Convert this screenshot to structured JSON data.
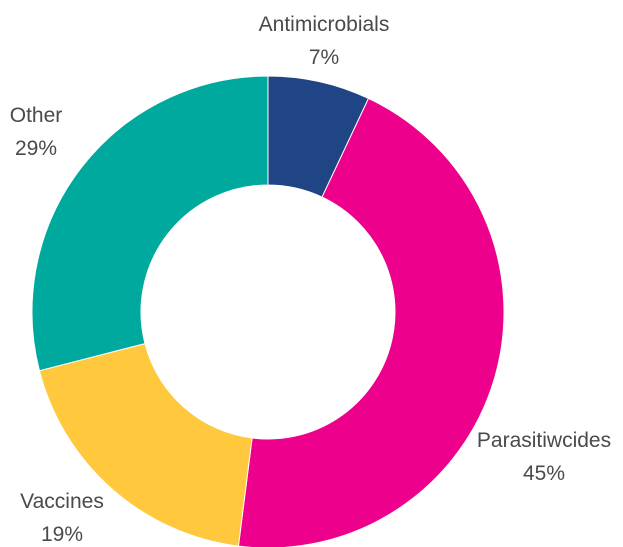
{
  "chart_data": {
    "type": "pie",
    "donut": true,
    "start_angle_deg": 0,
    "direction": "clockwise",
    "legend": "none",
    "slices": [
      {
        "name": "Antimicrobials",
        "value": 7,
        "label": "7%",
        "color": "#1f4584"
      },
      {
        "name": "Parasitiwcides",
        "value": 45,
        "label": "45%",
        "color": "#ec008c"
      },
      {
        "name": "Vaccines",
        "value": 19,
        "label": "19%",
        "color": "#ffc83d"
      },
      {
        "name": "Other",
        "value": 29,
        "label": "29%",
        "color": "#00a99d"
      }
    ]
  }
}
